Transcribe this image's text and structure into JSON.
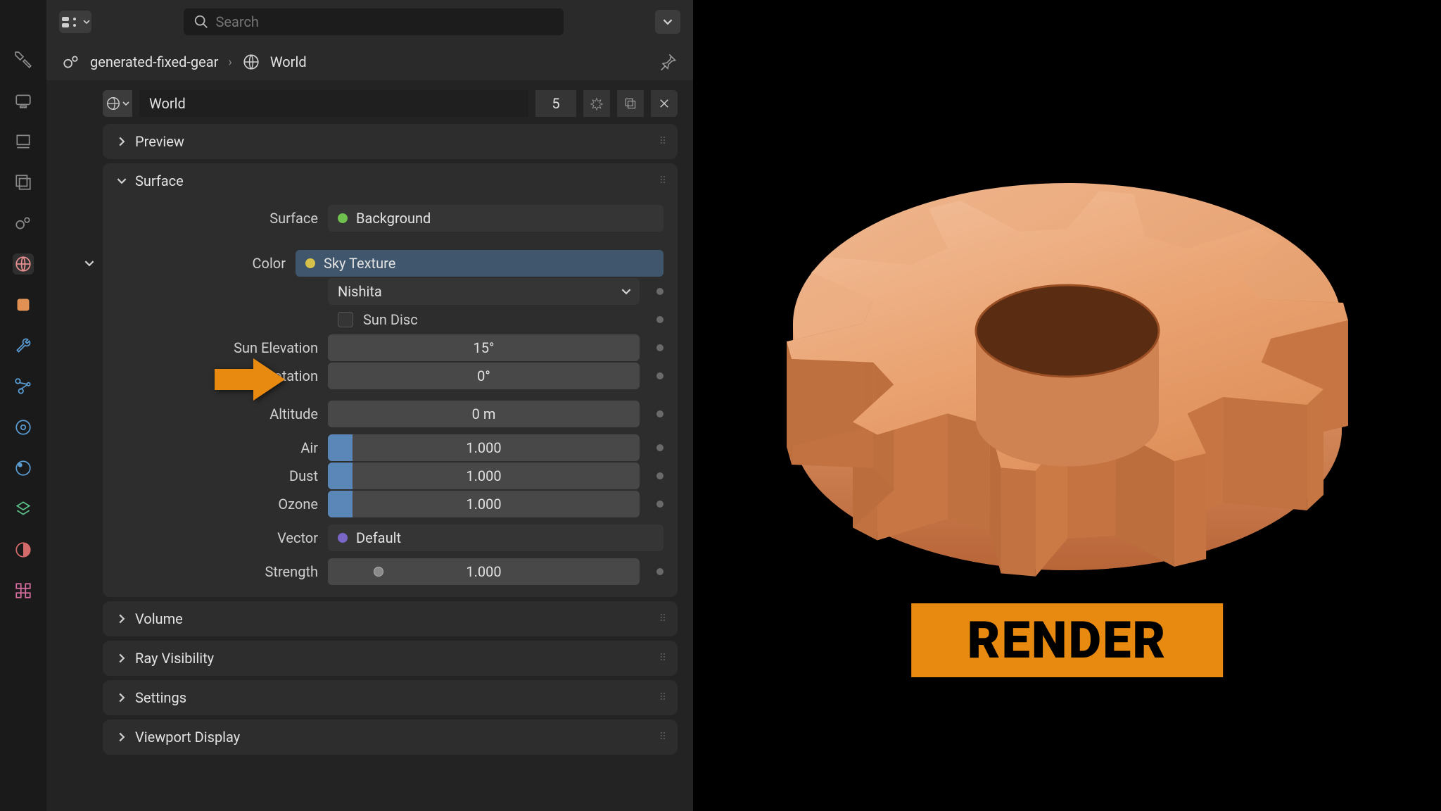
{
  "toolbar": {
    "search_placeholder": "Search"
  },
  "breadcrumb": {
    "item1": "generated-fixed-gear",
    "item2": "World"
  },
  "datablock": {
    "name": "World",
    "users": "5"
  },
  "panels": {
    "preview": "Preview",
    "surface": "Surface",
    "volume": "Volume",
    "ray_visibility": "Ray Visibility",
    "settings": "Settings",
    "viewport": "Viewport Display"
  },
  "surface": {
    "surface_lbl": "Surface",
    "surface_val": "Background",
    "color_lbl": "Color",
    "color_val": "Sky Texture",
    "sky_model": "Nishita",
    "sun_disc_lbl": "Sun Disc",
    "sun_elev_lbl": "Sun Elevation",
    "sun_elev_val": "15°",
    "sun_rot_lbl": "Sun Rotation",
    "sun_rot_val": "0°",
    "altitude_lbl": "Altitude",
    "altitude_val": "0 m",
    "air_lbl": "Air",
    "air_val": "1.000",
    "air_fill": 8,
    "dust_lbl": "Dust",
    "dust_val": "1.000",
    "dust_fill": 8,
    "ozone_lbl": "Ozone",
    "ozone_val": "1.000",
    "ozone_fill": 8,
    "vector_lbl": "Vector",
    "vector_val": "Default",
    "strength_lbl": "Strength",
    "strength_val": "1.000"
  },
  "render": {
    "label": "RENDER",
    "bg": "#e88a0f"
  },
  "gear": {
    "body_light": "#ecaf87",
    "body_mid": "#e19560",
    "body_dark": "#c06f3e",
    "shadow": "#8f4a24"
  },
  "colors": {
    "panel_bg": "#2d2d2d",
    "field_bg": "#484848",
    "socket_bg": "#353535",
    "socket_sel": "#40566d",
    "slider_fill": "#5a87b8",
    "arrow": "#e88a0f"
  }
}
